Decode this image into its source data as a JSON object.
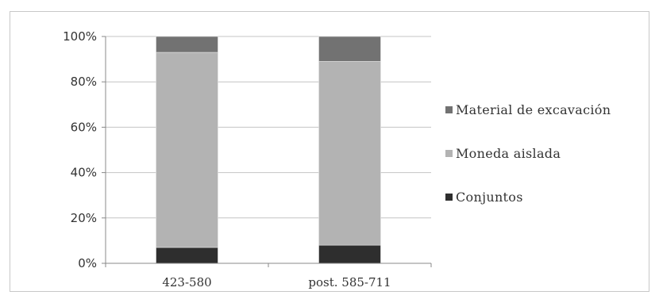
{
  "chart_data": {
    "type": "bar",
    "stacked": true,
    "normalized_percent": true,
    "categories": [
      "423-580",
      "post. 585-711"
    ],
    "series": [
      {
        "name": "Conjuntos",
        "values": [
          7,
          8
        ],
        "color": "#2e2e2e"
      },
      {
        "name": "Moneda aislada",
        "values": [
          86,
          81
        ],
        "color": "#b3b3b3"
      },
      {
        "name": "Material de excavación",
        "values": [
          7,
          11
        ],
        "color": "#727272"
      }
    ],
    "y_ticks": [
      "0%",
      "20%",
      "40%",
      "60%",
      "80%",
      "100%"
    ],
    "ylim": [
      0,
      100
    ],
    "grid": true,
    "legend_position": "right",
    "legend_order": [
      "Material de excavación",
      "Moneda aislada",
      "Conjuntos"
    ]
  }
}
